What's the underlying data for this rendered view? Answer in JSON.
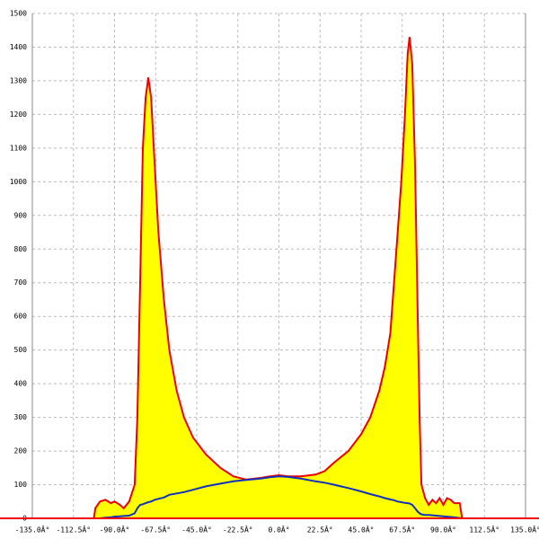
{
  "chart_data": {
    "type": "area",
    "x": [
      -101.3,
      -100.5,
      -98,
      -95,
      -92,
      -90,
      -87,
      -85,
      -82,
      -79,
      -77.5,
      -76,
      -74.5,
      -73,
      -71.5,
      -70,
      -68,
      -66,
      -63,
      -60,
      -56,
      -52,
      -47,
      -40,
      -32,
      -25,
      -18,
      -10,
      -5,
      0,
      5,
      12,
      20,
      25,
      30,
      38,
      45,
      50,
      55,
      58,
      61,
      63,
      65,
      67,
      69,
      70.5,
      71.5,
      73,
      74.5,
      76,
      77,
      78,
      80,
      82,
      84,
      86,
      88,
      90,
      92,
      94,
      96,
      99,
      100.3
    ],
    "series": [
      {
        "color": "#ee0000",
        "fill": "#ffff00",
        "values": [
          0,
          30,
          50,
          55,
          45,
          50,
          40,
          30,
          50,
          100,
          300,
          700,
          1100,
          1250,
          1310,
          1250,
          1050,
          850,
          650,
          500,
          380,
          300,
          240,
          190,
          150,
          125,
          115,
          120,
          125,
          128,
          125,
          125,
          130,
          140,
          165,
          200,
          250,
          300,
          380,
          450,
          550,
          700,
          850,
          1000,
          1200,
          1380,
          1430,
          1350,
          1050,
          600,
          300,
          100,
          60,
          40,
          55,
          45,
          60,
          40,
          60,
          55,
          45,
          45,
          0
        ]
      },
      {
        "color": "#1030c0",
        "values": [
          0,
          0,
          0,
          2,
          3,
          5,
          6,
          7,
          8,
          15,
          30,
          40,
          42,
          45,
          48,
          50,
          55,
          58,
          62,
          70,
          74,
          78,
          85,
          95,
          103,
          110,
          114,
          118,
          122,
          125,
          123,
          118,
          110,
          106,
          100,
          90,
          80,
          72,
          65,
          60,
          56,
          54,
          50,
          48,
          46,
          45,
          44,
          40,
          30,
          20,
          15,
          12,
          10,
          10,
          9,
          8,
          7,
          6,
          5,
          4,
          3,
          1,
          0
        ]
      }
    ],
    "xlim": [
      -135,
      135
    ],
    "xticks": [
      {
        "value": -135,
        "label": "-135.0Â°"
      },
      {
        "value": -112.5,
        "label": "-112.5Â°"
      },
      {
        "value": -90,
        "label": "-90.0Â°"
      },
      {
        "value": -67.5,
        "label": "-67.5Â°"
      },
      {
        "value": -45,
        "label": "-45.0Â°"
      },
      {
        "value": -22.5,
        "label": "-22.5Â°"
      },
      {
        "value": 0,
        "label": "0.0Â°"
      },
      {
        "value": 22.5,
        "label": "22.5Â°"
      },
      {
        "value": 45,
        "label": "45.0Â°"
      },
      {
        "value": 67.5,
        "label": "67.5Â°"
      },
      {
        "value": 90,
        "label": "90.0Â°"
      },
      {
        "value": 112.5,
        "label": "112.5Â°"
      },
      {
        "value": 135,
        "label": "135.0Â°"
      }
    ],
    "ylim": [
      0,
      1500
    ],
    "yticks": [
      0,
      100,
      200,
      300,
      400,
      500,
      600,
      700,
      800,
      900,
      1000,
      1100,
      1200,
      1300,
      1400,
      1500
    ],
    "grid": true
  }
}
